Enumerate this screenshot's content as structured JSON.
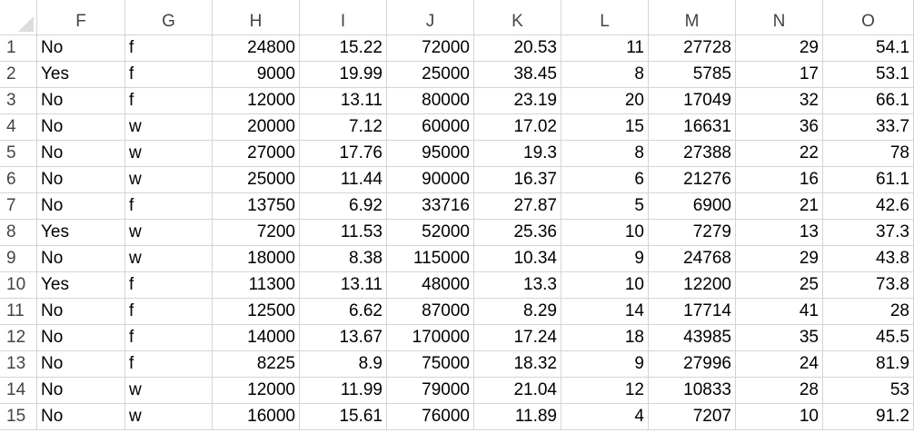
{
  "columns": [
    "F",
    "G",
    "H",
    "I",
    "J",
    "K",
    "L",
    "M",
    "N",
    "O"
  ],
  "rows": [
    {
      "num": "1",
      "cells": [
        "No",
        "f",
        "24800",
        "15.22",
        "72000",
        "20.53",
        "11",
        "27728",
        "29",
        "54.1"
      ]
    },
    {
      "num": "2",
      "cells": [
        "Yes",
        "f",
        "9000",
        "19.99",
        "25000",
        "38.45",
        "8",
        "5785",
        "17",
        "53.1"
      ]
    },
    {
      "num": "3",
      "cells": [
        "No",
        "f",
        "12000",
        "13.11",
        "80000",
        "23.19",
        "20",
        "17049",
        "32",
        "66.1"
      ]
    },
    {
      "num": "4",
      "cells": [
        "No",
        "w",
        "20000",
        "7.12",
        "60000",
        "17.02",
        "15",
        "16631",
        "36",
        "33.7"
      ]
    },
    {
      "num": "5",
      "cells": [
        "No",
        "w",
        "27000",
        "17.76",
        "95000",
        "19.3",
        "8",
        "27388",
        "22",
        "78"
      ]
    },
    {
      "num": "6",
      "cells": [
        "No",
        "w",
        "25000",
        "11.44",
        "90000",
        "16.37",
        "6",
        "21276",
        "16",
        "61.1"
      ]
    },
    {
      "num": "7",
      "cells": [
        "No",
        "f",
        "13750",
        "6.92",
        "33716",
        "27.87",
        "5",
        "6900",
        "21",
        "42.6"
      ]
    },
    {
      "num": "8",
      "cells": [
        "Yes",
        "w",
        "7200",
        "11.53",
        "52000",
        "25.36",
        "10",
        "7279",
        "13",
        "37.3"
      ]
    },
    {
      "num": "9",
      "cells": [
        "No",
        "w",
        "18000",
        "8.38",
        "115000",
        "10.34",
        "9",
        "24768",
        "29",
        "43.8"
      ]
    },
    {
      "num": "10",
      "cells": [
        "Yes",
        "f",
        "11300",
        "13.11",
        "48000",
        "13.3",
        "10",
        "12200",
        "25",
        "73.8"
      ]
    },
    {
      "num": "11",
      "cells": [
        "No",
        "f",
        "12500",
        "6.62",
        "87000",
        "8.29",
        "14",
        "17714",
        "41",
        "28"
      ]
    },
    {
      "num": "12",
      "cells": [
        "No",
        "f",
        "14000",
        "13.67",
        "170000",
        "17.24",
        "18",
        "43985",
        "35",
        "45.5"
      ]
    },
    {
      "num": "13",
      "cells": [
        "No",
        "f",
        "8225",
        "8.9",
        "75000",
        "18.32",
        "9",
        "27996",
        "24",
        "81.9"
      ]
    },
    {
      "num": "14",
      "cells": [
        "No",
        "w",
        "12000",
        "11.99",
        "79000",
        "21.04",
        "12",
        "10833",
        "28",
        "53"
      ]
    },
    {
      "num": "15",
      "cells": [
        "No",
        "w",
        "16000",
        "15.61",
        "76000",
        "11.89",
        "4",
        "7207",
        "10",
        "91.2"
      ]
    }
  ]
}
